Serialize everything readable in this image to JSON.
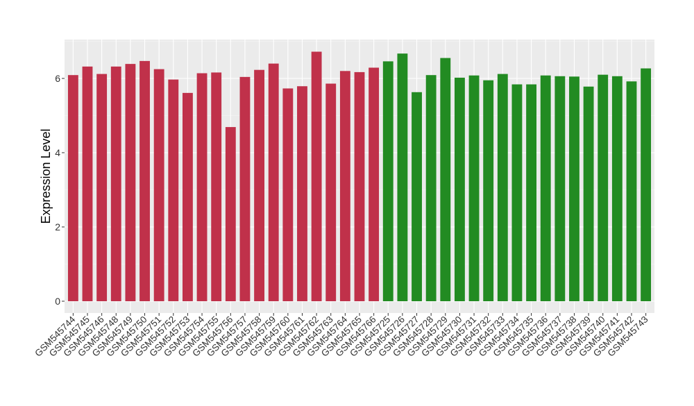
{
  "chart_data": {
    "type": "bar",
    "title": "",
    "xlabel": "",
    "ylabel": "Expression Level",
    "ylim": [
      0,
      7
    ],
    "yticks": [
      0,
      2,
      4,
      6
    ],
    "grid": true,
    "legend": "none",
    "series": [
      {
        "color": "#c0314a",
        "categories": [
          "GSM545744",
          "GSM545745",
          "GSM545746",
          "GSM545748",
          "GSM545749",
          "GSM545750",
          "GSM545751",
          "GSM545752",
          "GSM545753",
          "GSM545754",
          "GSM545755",
          "GSM545756",
          "GSM545757",
          "GSM545758",
          "GSM545759",
          "GSM545760",
          "GSM545761",
          "GSM545762",
          "GSM545763",
          "GSM545764",
          "GSM545765",
          "GSM545766"
        ],
        "values": [
          6.09,
          6.32,
          6.12,
          6.32,
          6.39,
          6.47,
          6.25,
          5.97,
          5.61,
          6.14,
          6.16,
          4.69,
          6.04,
          6.23,
          6.4,
          5.73,
          5.79,
          6.72,
          5.86,
          6.2,
          6.17,
          6.29
        ]
      },
      {
        "color": "#228b22",
        "categories": [
          "GSM545725",
          "GSM545726",
          "GSM545727",
          "GSM545728",
          "GSM545729",
          "GSM545730",
          "GSM545731",
          "GSM545732",
          "GSM545733",
          "GSM545734",
          "GSM545735",
          "GSM545736",
          "GSM545737",
          "GSM545738",
          "GSM545739",
          "GSM545740",
          "GSM545741",
          "GSM545742",
          "GSM545743"
        ],
        "values": [
          6.46,
          6.67,
          5.63,
          6.09,
          6.55,
          6.02,
          6.08,
          5.95,
          6.12,
          5.84,
          5.84,
          6.08,
          6.06,
          6.05,
          5.78,
          6.1,
          6.06,
          5.92,
          6.27
        ]
      }
    ]
  }
}
